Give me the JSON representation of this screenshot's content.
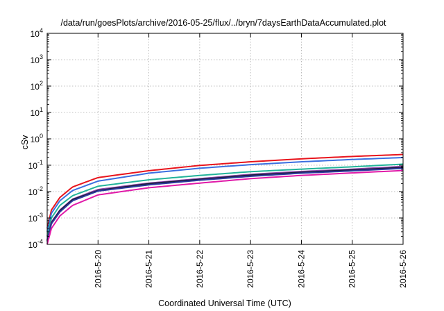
{
  "chart_data": {
    "type": "line",
    "title": "/data/run/goesPlots/archive/2016-05-25/flux/../bryn/7daysEarthDataAccumulated.plot",
    "xlabel": "Coordinated Universal Time (UTC)",
    "ylabel": "cSv",
    "y_scale": "log",
    "ylim": [
      0.0001,
      10000
    ],
    "xlim": [
      "2016-05-19T00:00",
      "2016-05-26T00:00"
    ],
    "grid": true,
    "x_ticks": [
      "2016-5-20",
      "2016-5-21",
      "2016-5-22",
      "2016-5-23",
      "2016-5-24",
      "2016-5-25",
      "2016-5-26"
    ],
    "y_ticks": [
      {
        "base": "10",
        "exp": "-4"
      },
      {
        "base": "10",
        "exp": "-3"
      },
      {
        "base": "10",
        "exp": "-2"
      },
      {
        "base": "10",
        "exp": "-1"
      },
      {
        "base": "10",
        "exp": "0"
      },
      {
        "base": "10",
        "exp": "1"
      },
      {
        "base": "10",
        "exp": "2"
      },
      {
        "base": "10",
        "exp": "3"
      },
      {
        "base": "10",
        "exp": "4"
      }
    ],
    "x": [
      "2016-05-19T00:00",
      "2016-05-19T02:00",
      "2016-05-19T06:00",
      "2016-05-19T12:00",
      "2016-05-20T00:00",
      "2016-05-21T00:00",
      "2016-05-22T00:00",
      "2016-05-23T00:00",
      "2016-05-24T00:00",
      "2016-05-25T00:00",
      "2016-05-26T00:00"
    ],
    "series": [
      {
        "color": "#e8141c",
        "values": [
          0.0004,
          0.002,
          0.006,
          0.015,
          0.034,
          0.062,
          0.098,
          0.135,
          0.175,
          0.215,
          0.255
        ]
      },
      {
        "color": "#3a6fe0",
        "values": [
          0.0003,
          0.0015,
          0.0045,
          0.011,
          0.025,
          0.05,
          0.077,
          0.105,
          0.135,
          0.165,
          0.195
        ]
      },
      {
        "color": "#22b39a",
        "values": [
          0.0002,
          0.001,
          0.003,
          0.007,
          0.016,
          0.028,
          0.041,
          0.057,
          0.071,
          0.087,
          0.11
        ]
      },
      {
        "color": "#8e44ad",
        "values": [
          0.00015,
          0.0007,
          0.002,
          0.0052,
          0.012,
          0.021,
          0.031,
          0.045,
          0.058,
          0.071,
          0.09
        ]
      },
      {
        "color": "#1b1e3c",
        "values": [
          0.00014,
          0.00065,
          0.0019,
          0.005,
          0.011,
          0.02,
          0.029,
          0.042,
          0.054,
          0.066,
          0.082
        ]
      },
      {
        "color": "#2c3a9e",
        "values": [
          0.00013,
          0.0006,
          0.0017,
          0.0045,
          0.0105,
          0.018,
          0.027,
          0.038,
          0.05,
          0.061,
          0.076
        ]
      },
      {
        "color": "#e01aa8",
        "values": [
          0.0001,
          0.0004,
          0.0012,
          0.003,
          0.0075,
          0.014,
          0.021,
          0.031,
          0.041,
          0.051,
          0.063
        ]
      }
    ]
  }
}
